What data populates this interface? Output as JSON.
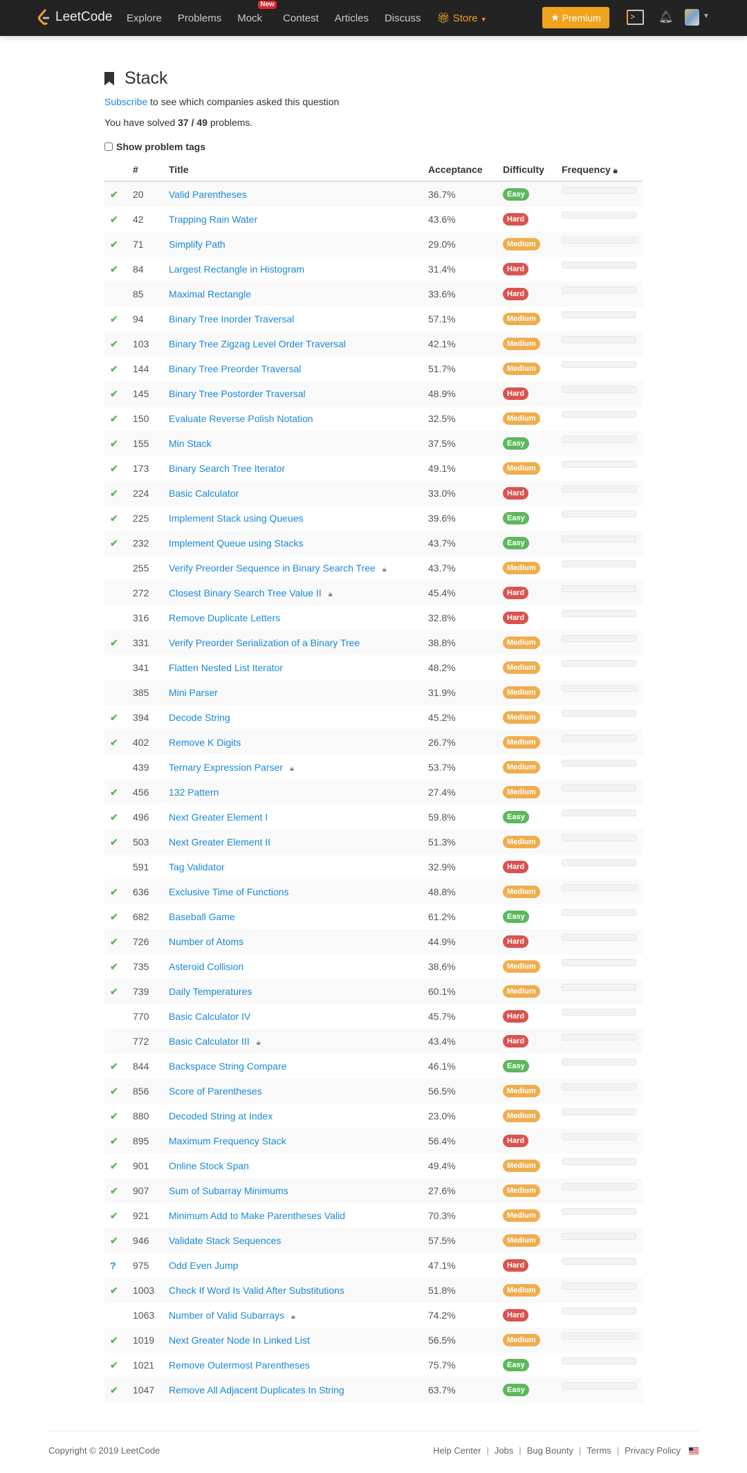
{
  "nav": {
    "logo": "LeetCode",
    "links": [
      "Explore",
      "Problems",
      "Mock",
      "Contest",
      "Articles",
      "Discuss"
    ],
    "new_badge": "New",
    "store": "Store",
    "premium": "Premium"
  },
  "page": {
    "title": "Stack",
    "subscribe_link": "Subscribe",
    "subscribe_rest": " to see which companies asked this question",
    "solved_prefix": "You have solved ",
    "solved_count": "37 / 49",
    "solved_suffix": " problems.",
    "show_tags": "Show problem tags"
  },
  "table": {
    "headers": [
      "#",
      "Title",
      "Acceptance",
      "Difficulty",
      "Frequency"
    ],
    "colors": {
      "Easy": "#5cb85c",
      "Medium": "#f0ad4e",
      "Hard": "#d9534f"
    },
    "rows": [
      [
        "ac",
        "20",
        "Valid Parentheses",
        "36.7%",
        "Easy",
        false
      ],
      [
        "ac",
        "42",
        "Trapping Rain Water",
        "43.6%",
        "Hard",
        false
      ],
      [
        "ac",
        "71",
        "Simplify Path",
        "29.0%",
        "Medium",
        false
      ],
      [
        "ac",
        "84",
        "Largest Rectangle in Histogram",
        "31.4%",
        "Hard",
        false
      ],
      [
        "",
        "85",
        "Maximal Rectangle",
        "33.6%",
        "Hard",
        false
      ],
      [
        "ac",
        "94",
        "Binary Tree Inorder Traversal",
        "57.1%",
        "Medium",
        false
      ],
      [
        "ac",
        "103",
        "Binary Tree Zigzag Level Order Traversal",
        "42.1%",
        "Medium",
        false
      ],
      [
        "ac",
        "144",
        "Binary Tree Preorder Traversal",
        "51.7%",
        "Medium",
        false
      ],
      [
        "ac",
        "145",
        "Binary Tree Postorder Traversal",
        "48.9%",
        "Hard",
        false
      ],
      [
        "ac",
        "150",
        "Evaluate Reverse Polish Notation",
        "32.5%",
        "Medium",
        false
      ],
      [
        "ac",
        "155",
        "Min Stack",
        "37.5%",
        "Easy",
        false
      ],
      [
        "ac",
        "173",
        "Binary Search Tree Iterator",
        "49.1%",
        "Medium",
        false
      ],
      [
        "ac",
        "224",
        "Basic Calculator",
        "33.0%",
        "Hard",
        false
      ],
      [
        "ac",
        "225",
        "Implement Stack using Queues",
        "39.6%",
        "Easy",
        false
      ],
      [
        "ac",
        "232",
        "Implement Queue using Stacks",
        "43.7%",
        "Easy",
        false
      ],
      [
        "",
        "255",
        "Verify Preorder Sequence in Binary Search Tree",
        "43.7%",
        "Medium",
        true
      ],
      [
        "",
        "272",
        "Closest Binary Search Tree Value II",
        "45.4%",
        "Hard",
        true
      ],
      [
        "",
        "316",
        "Remove Duplicate Letters",
        "32.8%",
        "Hard",
        false
      ],
      [
        "ac",
        "331",
        "Verify Preorder Serialization of a Binary Tree",
        "38.8%",
        "Medium",
        false
      ],
      [
        "",
        "341",
        "Flatten Nested List Iterator",
        "48.2%",
        "Medium",
        false
      ],
      [
        "",
        "385",
        "Mini Parser",
        "31.9%",
        "Medium",
        false
      ],
      [
        "ac",
        "394",
        "Decode String",
        "45.2%",
        "Medium",
        false
      ],
      [
        "ac",
        "402",
        "Remove K Digits",
        "26.7%",
        "Medium",
        false
      ],
      [
        "",
        "439",
        "Ternary Expression Parser",
        "53.7%",
        "Medium",
        true
      ],
      [
        "ac",
        "456",
        "132 Pattern",
        "27.4%",
        "Medium",
        false
      ],
      [
        "ac",
        "496",
        "Next Greater Element I",
        "59.8%",
        "Easy",
        false
      ],
      [
        "ac",
        "503",
        "Next Greater Element II",
        "51.3%",
        "Medium",
        false
      ],
      [
        "",
        "591",
        "Tag Validator",
        "32.9%",
        "Hard",
        false
      ],
      [
        "ac",
        "636",
        "Exclusive Time of Functions",
        "48.8%",
        "Medium",
        false
      ],
      [
        "ac",
        "682",
        "Baseball Game",
        "61.2%",
        "Easy",
        false
      ],
      [
        "ac",
        "726",
        "Number of Atoms",
        "44.9%",
        "Hard",
        false
      ],
      [
        "ac",
        "735",
        "Asteroid Collision",
        "38.6%",
        "Medium",
        false
      ],
      [
        "ac",
        "739",
        "Daily Temperatures",
        "60.1%",
        "Medium",
        false
      ],
      [
        "",
        "770",
        "Basic Calculator IV",
        "45.7%",
        "Hard",
        false
      ],
      [
        "",
        "772",
        "Basic Calculator III",
        "43.4%",
        "Hard",
        true
      ],
      [
        "ac",
        "844",
        "Backspace String Compare",
        "46.1%",
        "Easy",
        false
      ],
      [
        "ac",
        "856",
        "Score of Parentheses",
        "56.5%",
        "Medium",
        false
      ],
      [
        "ac",
        "880",
        "Decoded String at Index",
        "23.0%",
        "Medium",
        false
      ],
      [
        "ac",
        "895",
        "Maximum Frequency Stack",
        "56.4%",
        "Hard",
        false
      ],
      [
        "ac",
        "901",
        "Online Stock Span",
        "49.4%",
        "Medium",
        false
      ],
      [
        "ac",
        "907",
        "Sum of Subarray Minimums",
        "27.6%",
        "Medium",
        false
      ],
      [
        "ac",
        "921",
        "Minimum Add to Make Parentheses Valid",
        "70.3%",
        "Medium",
        false
      ],
      [
        "ac",
        "946",
        "Validate Stack Sequences",
        "57.5%",
        "Medium",
        false
      ],
      [
        "notac",
        "975",
        "Odd Even Jump",
        "47.1%",
        "Hard",
        false
      ],
      [
        "ac",
        "1003",
        "Check If Word Is Valid After Substitutions",
        "51.8%",
        "Medium",
        false
      ],
      [
        "",
        "1063",
        "Number of Valid Subarrays",
        "74.2%",
        "Hard",
        true
      ],
      [
        "ac",
        "1019",
        "Next Greater Node In Linked List",
        "56.5%",
        "Medium",
        false
      ],
      [
        "ac",
        "1021",
        "Remove Outermost Parentheses",
        "75.7%",
        "Easy",
        false
      ],
      [
        "ac",
        "1047",
        "Remove All Adjacent Duplicates In String",
        "63.7%",
        "Easy",
        false
      ]
    ]
  },
  "footer": {
    "copyright": "Copyright © 2019 LeetCode",
    "links": [
      "Help Center",
      "Jobs",
      "Bug Bounty",
      "Terms",
      "Privacy Policy"
    ]
  }
}
